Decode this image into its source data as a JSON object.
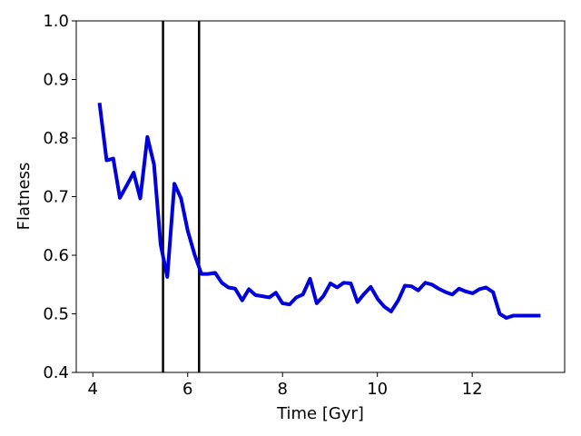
{
  "chart_data": {
    "type": "line",
    "xlabel": "Time [Gyr]",
    "ylabel": "Flatness",
    "xlim": [
      3.65,
      13.95
    ],
    "ylim": [
      0.4,
      1.0
    ],
    "xticks": [
      4,
      6,
      8,
      10,
      12
    ],
    "yticks": [
      0.4,
      0.5,
      0.6,
      0.7,
      0.8,
      0.9,
      1.0
    ],
    "xtick_labels": [
      "4",
      "6",
      "8",
      "10",
      "12"
    ],
    "ytick_labels": [
      "0.4",
      "0.5",
      "0.6",
      "0.7",
      "0.8",
      "0.9",
      "1.0"
    ],
    "grid": false,
    "vertical_lines": [
      5.48,
      6.24
    ],
    "series": [
      {
        "color": "#0000dd",
        "x": [
          4.14,
          4.29,
          4.43,
          4.57,
          4.72,
          4.86,
          5.0,
          5.15,
          5.29,
          5.43,
          5.57,
          5.72,
          5.86,
          6.0,
          6.15,
          6.29,
          6.43,
          6.58,
          6.72,
          6.86,
          7.0,
          7.15,
          7.29,
          7.43,
          7.58,
          7.72,
          7.86,
          8.0,
          8.15,
          8.29,
          8.43,
          8.58,
          8.72,
          8.86,
          9.01,
          9.15,
          9.29,
          9.44,
          9.58,
          9.72,
          9.86,
          10.01,
          10.15,
          10.29,
          10.44,
          10.58,
          10.72,
          10.86,
          11.01,
          11.15,
          11.29,
          11.44,
          11.58,
          11.72,
          11.87,
          12.01,
          12.15,
          12.29,
          12.44,
          12.58,
          12.72,
          12.87,
          13.01,
          13.15,
          13.3,
          13.44
        ],
        "y": [
          0.86,
          0.762,
          0.765,
          0.698,
          0.72,
          0.741,
          0.697,
          0.802,
          0.755,
          0.618,
          0.563,
          0.722,
          0.697,
          0.642,
          0.6,
          0.568,
          0.568,
          0.57,
          0.553,
          0.545,
          0.543,
          0.523,
          0.542,
          0.532,
          0.53,
          0.528,
          0.536,
          0.518,
          0.516,
          0.528,
          0.533,
          0.56,
          0.518,
          0.53,
          0.552,
          0.545,
          0.553,
          0.552,
          0.52,
          0.534,
          0.546,
          0.525,
          0.512,
          0.504,
          0.523,
          0.548,
          0.547,
          0.54,
          0.553,
          0.55,
          0.543,
          0.537,
          0.533,
          0.543,
          0.538,
          0.535,
          0.542,
          0.545,
          0.537,
          0.5,
          0.493,
          0.497,
          0.497,
          0.497,
          0.497,
          0.497
        ]
      }
    ]
  }
}
